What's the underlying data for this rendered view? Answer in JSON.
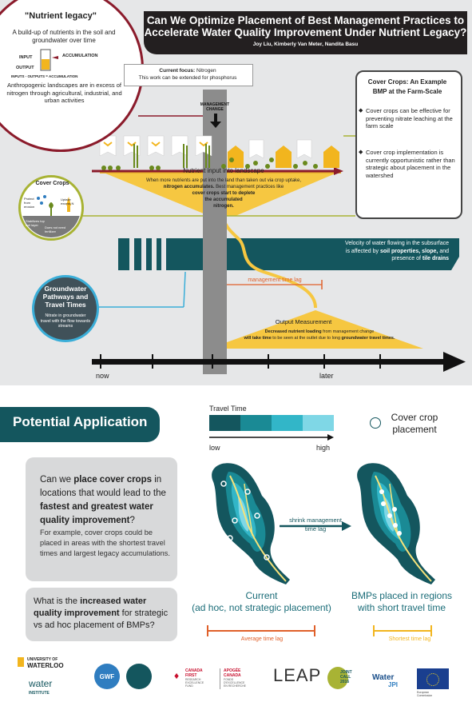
{
  "header": {
    "title_line1": "Can We Optimize Placement of Best Management Practices to",
    "title_line2": "Accelerate Water Quality Improvement Under Nutrient Legacy?",
    "authors": "Joy Liu, Kimberly Van Meter, Nandita Basu"
  },
  "legacy": {
    "title": "\"Nutrient legacy\"",
    "subtitle": "A build-up of nutrients in the soil and groundwater over time",
    "input": "INPUT",
    "output": "OUTPUT",
    "accumulation": "ACCUMULATION",
    "equation": "INPUTS - OUTPUTS = ACCUMULATION",
    "body": "Anthropogenic landscapes are in excess of nitrogen through agricultural, industrial, and urban activities"
  },
  "focus": {
    "label": "Current focus:",
    "value": "Nitrogen",
    "note": "This work can be extended for phosphorus"
  },
  "management_change": "MANAGEMENT CHANGE",
  "covercrop_box": {
    "title_line1": "Cover Crops: An Example",
    "title_line2": "BMP at the Farm-Scale",
    "bullet1": "Cover crops can be effective for preventing nitrate leaching at the farm scale",
    "bullet2": "Cover crop implementation is currently opportunistic rather than strategic about placement in the watershed"
  },
  "funnel": {
    "title": "Nutrient input into landscape",
    "text1": "When more nutrients are put into the land than taken out via crop uptake,",
    "text2": "nitrogen accumulates.",
    "text3": "Best management practices like",
    "text4": "cover crops start to deplete",
    "text5": "the accumulated",
    "text6": "nitrogen."
  },
  "cover_crops_circle": {
    "title": "Cover Crops",
    "protect": "Protect from erosion",
    "uptake": "Uptake excess N",
    "stabilize": "Stabilizes top soil layer",
    "fertilizer": "Does not need fertilizer"
  },
  "groundwater": {
    "title": "Groundwater Pathways and Travel Times",
    "text": "Nitrate in groundwater travel with the flow towards streams"
  },
  "velocity": {
    "text1": "Velocity of water flowing in the subsurface",
    "text2": "is affected by",
    "bold1": "soil properties, slope,",
    "text3": "and",
    "text4": "presence of",
    "bold2": "tile drains"
  },
  "management_time_lag": "management time lag",
  "output": {
    "title": "Output Measurement",
    "text1a": "Decreased nutrient loading",
    "text1b": "from management change",
    "text2a": "will take time",
    "text2b": "to be seen at the outlet due to long",
    "text2c": "groundwater travel times."
  },
  "timeline": {
    "now": "now",
    "later": "later"
  },
  "application": {
    "banner": "Potential Application",
    "travel_time": "Travel Time",
    "low": "low",
    "high": "high",
    "cover_crop_placement_1": "Cover crop",
    "cover_crop_placement_2": "placement",
    "q1_a": "Can we",
    "q1_b": "place cover crops",
    "q1_c": "in locations that would lead to the",
    "q1_d": "fastest and greatest water quality improvement",
    "q1_e": "?",
    "q1_sub": "For example, cover crops could be placed in areas with the shortest travel times and largest legacy accumulations.",
    "q2_a": "What is the",
    "q2_b": "increased water quality improvement",
    "q2_c": "for strategic vs ad hoc placement of BMPs?",
    "shrink_1": "shrink management",
    "shrink_2": "time lag",
    "current_1": "Current",
    "current_2": "(ad hoc, not strategic placement)",
    "bmp_1": "BMPs placed in regions",
    "bmp_2": "with short travel time",
    "average_lag": "Average time lag",
    "shortest_lag": "Shortest time lag"
  },
  "colors": {
    "dark_teal": "#14565e",
    "travel_scale": [
      "#14565e",
      "#1a8a95",
      "#32b6c8",
      "#7fd7e6"
    ],
    "orange": "#e0602a",
    "yellow": "#f2b51e",
    "legacy_red": "#8b1b2b",
    "olive": "#a8b334"
  },
  "logos": {
    "waterloo_1": "UNIVERSITY OF",
    "waterloo_2": "WATERLOO",
    "water_institute_1": "water",
    "water_institute_2": "INSTITUTE",
    "gwf": "GWF",
    "cfref_1": "CANADA",
    "cfref_2": "FIRST",
    "cfref_3": "RESEARCH",
    "cfref_4": "EXCELLENCE",
    "cfref_5": "FUND",
    "apogee_1": "APOGÉE",
    "apogee_2": "CANADA",
    "apogee_3": "FONDS",
    "apogee_4": "D'EXCELLENCE",
    "apogee_5": "EN RECHERCHE",
    "leap": "LEAP",
    "joint_call_1": "JOINT",
    "joint_call_2": "CALL",
    "joint_call_3": "2016",
    "water_jpi_1": "Water",
    "water_jpi_2": "JPI",
    "eu_1": "European",
    "eu_2": "Commission"
  }
}
